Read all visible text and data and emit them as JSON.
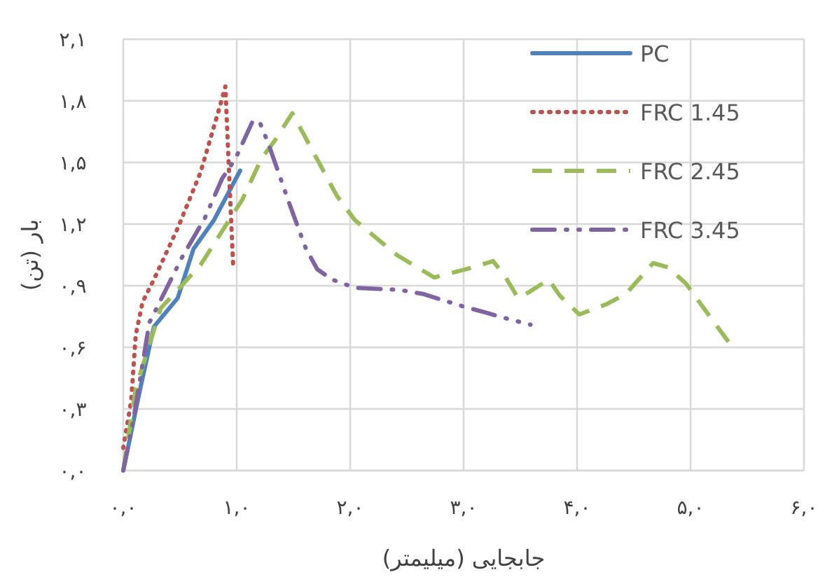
{
  "chart_data": {
    "type": "line",
    "xlabel": "جابجایی (میلیمتر)",
    "ylabel": "بار (تن)",
    "xlim": [
      0,
      6
    ],
    "ylim": [
      0,
      2.1
    ],
    "xticks": [
      {
        "value": 0,
        "label": "۰,۰"
      },
      {
        "value": 1,
        "label": "۱,۰"
      },
      {
        "value": 2,
        "label": "۲,۰"
      },
      {
        "value": 3,
        "label": "۳,۰"
      },
      {
        "value": 4,
        "label": "۴,۰"
      },
      {
        "value": 5,
        "label": "۵,۰"
      },
      {
        "value": 6,
        "label": "۶,۰"
      }
    ],
    "yticks": [
      {
        "value": 0,
        "label": "۰,۰"
      },
      {
        "value": 0.3,
        "label": "۰,۳"
      },
      {
        "value": 0.6,
        "label": "۰,۶"
      },
      {
        "value": 0.9,
        "label": "۰,۹"
      },
      {
        "value": 1.2,
        "label": "۱,۲"
      },
      {
        "value": 1.5,
        "label": "۱,۵"
      },
      {
        "value": 1.8,
        "label": "۱,۸"
      },
      {
        "value": 2.1,
        "label": "۲,۱"
      }
    ],
    "grid": true,
    "legend": "top right",
    "marker": "none",
    "series": [
      {
        "name": "PC",
        "color": "#4f81bd",
        "line_style": "solid",
        "x": [
          0,
          0.15,
          0.27,
          0.48,
          0.62,
          0.8,
          1.03
        ],
        "values": [
          0,
          0.4,
          0.7,
          0.84,
          1.08,
          1.22,
          1.46
        ]
      },
      {
        "name": "FRC 1.45",
        "color": "#c0504d",
        "line_style": "dotted",
        "x": [
          0,
          0.07,
          0.11,
          0.17,
          0.27,
          0.48,
          0.68,
          0.85,
          0.9,
          0.92,
          0.97
        ],
        "values": [
          0.11,
          0.34,
          0.66,
          0.82,
          0.93,
          1.18,
          1.45,
          1.77,
          1.87,
          1.61,
          0.98
        ]
      },
      {
        "name": "FRC 2.45",
        "color": "#9bbb59",
        "line_style": "dashed",
        "x": [
          0,
          0.11,
          0.33,
          0.68,
          1.05,
          1.22,
          1.34,
          1.49,
          1.88,
          2.04,
          2.41,
          2.74,
          3.09,
          3.26,
          3.36,
          3.48,
          3.58,
          3.75,
          3.85,
          4.02,
          4.26,
          4.43,
          4.67,
          4.8,
          4.96,
          5.17,
          5.37
        ],
        "values": [
          0,
          0.4,
          0.79,
          1.0,
          1.32,
          1.52,
          1.61,
          1.74,
          1.34,
          1.22,
          1.05,
          0.94,
          0.99,
          1.02,
          0.95,
          0.84,
          0.87,
          0.93,
          0.85,
          0.76,
          0.81,
          0.86,
          1.01,
          0.99,
          0.91,
          0.75,
          0.6
        ]
      },
      {
        "name": "FRC 3.45",
        "color": "#8064a2",
        "line_style": "dashdot",
        "x": [
          0,
          0.09,
          0.23,
          0.52,
          0.72,
          0.87,
          0.99,
          1.09,
          1.14,
          1.2,
          1.28,
          1.47,
          1.61,
          1.71,
          1.84,
          2.04,
          2.43,
          2.64,
          2.99,
          3.19,
          3.38,
          3.59
        ],
        "values": [
          0,
          0.25,
          0.72,
          1.04,
          1.23,
          1.42,
          1.52,
          1.64,
          1.7,
          1.7,
          1.59,
          1.29,
          1.08,
          0.98,
          0.93,
          0.89,
          0.88,
          0.86,
          0.8,
          0.77,
          0.74,
          0.71
        ]
      }
    ]
  }
}
